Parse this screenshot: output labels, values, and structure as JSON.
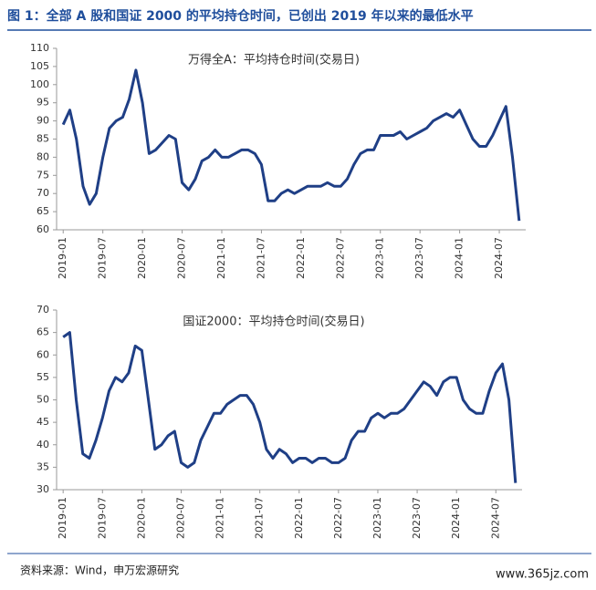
{
  "title": "图 1：全部 A 股和国证 2000 的平均持仓时间，已创出 2019 年以来的最低水平",
  "source": "资料来源：Wind，申万宏源研究",
  "watermark": "www.365jz.com",
  "chart_data": [
    {
      "type": "line",
      "title": "万得全A：平均持仓时间(交易日)",
      "x": [
        "2019-01",
        "2019-02",
        "2019-03",
        "2019-04",
        "2019-05",
        "2019-06",
        "2019-07",
        "2019-08",
        "2019-09",
        "2019-10",
        "2019-11",
        "2019-12",
        "2020-01",
        "2020-02",
        "2020-03",
        "2020-04",
        "2020-05",
        "2020-06",
        "2020-07",
        "2020-08",
        "2020-09",
        "2020-10",
        "2020-11",
        "2020-12",
        "2021-01",
        "2021-02",
        "2021-03",
        "2021-04",
        "2021-05",
        "2021-06",
        "2021-07",
        "2021-08",
        "2021-09",
        "2021-10",
        "2021-11",
        "2021-12",
        "2022-01",
        "2022-02",
        "2022-03",
        "2022-04",
        "2022-05",
        "2022-06",
        "2022-07",
        "2022-08",
        "2022-09",
        "2022-10",
        "2022-11",
        "2022-12",
        "2023-01",
        "2023-02",
        "2023-03",
        "2023-04",
        "2023-05",
        "2023-06",
        "2023-07",
        "2023-08",
        "2023-09",
        "2023-10",
        "2023-11",
        "2023-12",
        "2024-01",
        "2024-02",
        "2024-03",
        "2024-04",
        "2024-05",
        "2024-06",
        "2024-07",
        "2024-08",
        "2024-09",
        "2024-10"
      ],
      "series": [
        {
          "name": "万得全A",
          "color": "#1f3f86",
          "values": [
            89,
            93,
            85,
            72,
            67,
            70,
            80,
            88,
            90,
            91,
            96,
            104,
            95,
            81,
            82,
            84,
            86,
            85,
            73,
            71,
            74,
            79,
            80,
            82,
            80,
            80,
            81,
            82,
            82,
            81,
            78,
            68,
            68,
            70,
            71,
            70,
            71,
            72,
            72,
            72,
            73,
            72,
            72,
            74,
            78,
            81,
            82,
            82,
            86,
            86,
            86,
            87,
            85,
            86,
            87,
            88,
            90,
            91,
            92,
            91,
            93,
            89,
            85,
            83,
            83,
            86,
            90,
            94,
            80,
            62.5
          ]
        }
      ],
      "xlim": [
        "2018-12",
        "2024-11"
      ],
      "xticks": [
        "2019-01",
        "2019-07",
        "2020-01",
        "2020-07",
        "2021-01",
        "2021-07",
        "2022-01",
        "2022-07",
        "2023-01",
        "2023-07",
        "2024-01",
        "2024-07"
      ],
      "ylim": [
        60,
        110
      ],
      "yticks": [
        60,
        65,
        70,
        75,
        80,
        85,
        90,
        95,
        100,
        105,
        110
      ]
    },
    {
      "type": "line",
      "title": "国证2000：平均持仓时间(交易日)",
      "x": [
        "2019-01",
        "2019-02",
        "2019-03",
        "2019-04",
        "2019-05",
        "2019-06",
        "2019-07",
        "2019-08",
        "2019-09",
        "2019-10",
        "2019-11",
        "2019-12",
        "2020-01",
        "2020-02",
        "2020-03",
        "2020-04",
        "2020-05",
        "2020-06",
        "2020-07",
        "2020-08",
        "2020-09",
        "2020-10",
        "2020-11",
        "2020-12",
        "2021-01",
        "2021-02",
        "2021-03",
        "2021-04",
        "2021-05",
        "2021-06",
        "2021-07",
        "2021-08",
        "2021-09",
        "2021-10",
        "2021-11",
        "2021-12",
        "2022-01",
        "2022-02",
        "2022-03",
        "2022-04",
        "2022-05",
        "2022-06",
        "2022-07",
        "2022-08",
        "2022-09",
        "2022-10",
        "2022-11",
        "2022-12",
        "2023-01",
        "2023-02",
        "2023-03",
        "2023-04",
        "2023-05",
        "2023-06",
        "2023-07",
        "2023-08",
        "2023-09",
        "2023-10",
        "2023-11",
        "2023-12",
        "2024-01",
        "2024-02",
        "2024-03",
        "2024-04",
        "2024-05",
        "2024-06",
        "2024-07",
        "2024-08",
        "2024-09",
        "2024-10"
      ],
      "series": [
        {
          "name": "国证2000",
          "color": "#1f3f86",
          "values": [
            64,
            65,
            50,
            38,
            37,
            41,
            46,
            52,
            55,
            54,
            56,
            62,
            61,
            50,
            39,
            40,
            42,
            43,
            36,
            35,
            36,
            41,
            44,
            47,
            47,
            49,
            50,
            51,
            51,
            49,
            45,
            39,
            37,
            39,
            38,
            36,
            37,
            37,
            36,
            37,
            37,
            36,
            36,
            37,
            41,
            43,
            43,
            46,
            47,
            46,
            47,
            47,
            48,
            50,
            52,
            54,
            53,
            51,
            54,
            55,
            55,
            50,
            48,
            47,
            47,
            52,
            56,
            58,
            50,
            31.5
          ]
        }
      ],
      "xlim": [
        "2018-12",
        "2024-11"
      ],
      "xticks": [
        "2019-01",
        "2019-07",
        "2020-01",
        "2020-07",
        "2021-01",
        "2021-07",
        "2022-01",
        "2022-07",
        "2023-01",
        "2023-07",
        "2024-01",
        "2024-07"
      ],
      "ylim": [
        30,
        70
      ],
      "yticks": [
        30,
        35,
        40,
        45,
        50,
        55,
        60,
        65,
        70
      ]
    }
  ]
}
